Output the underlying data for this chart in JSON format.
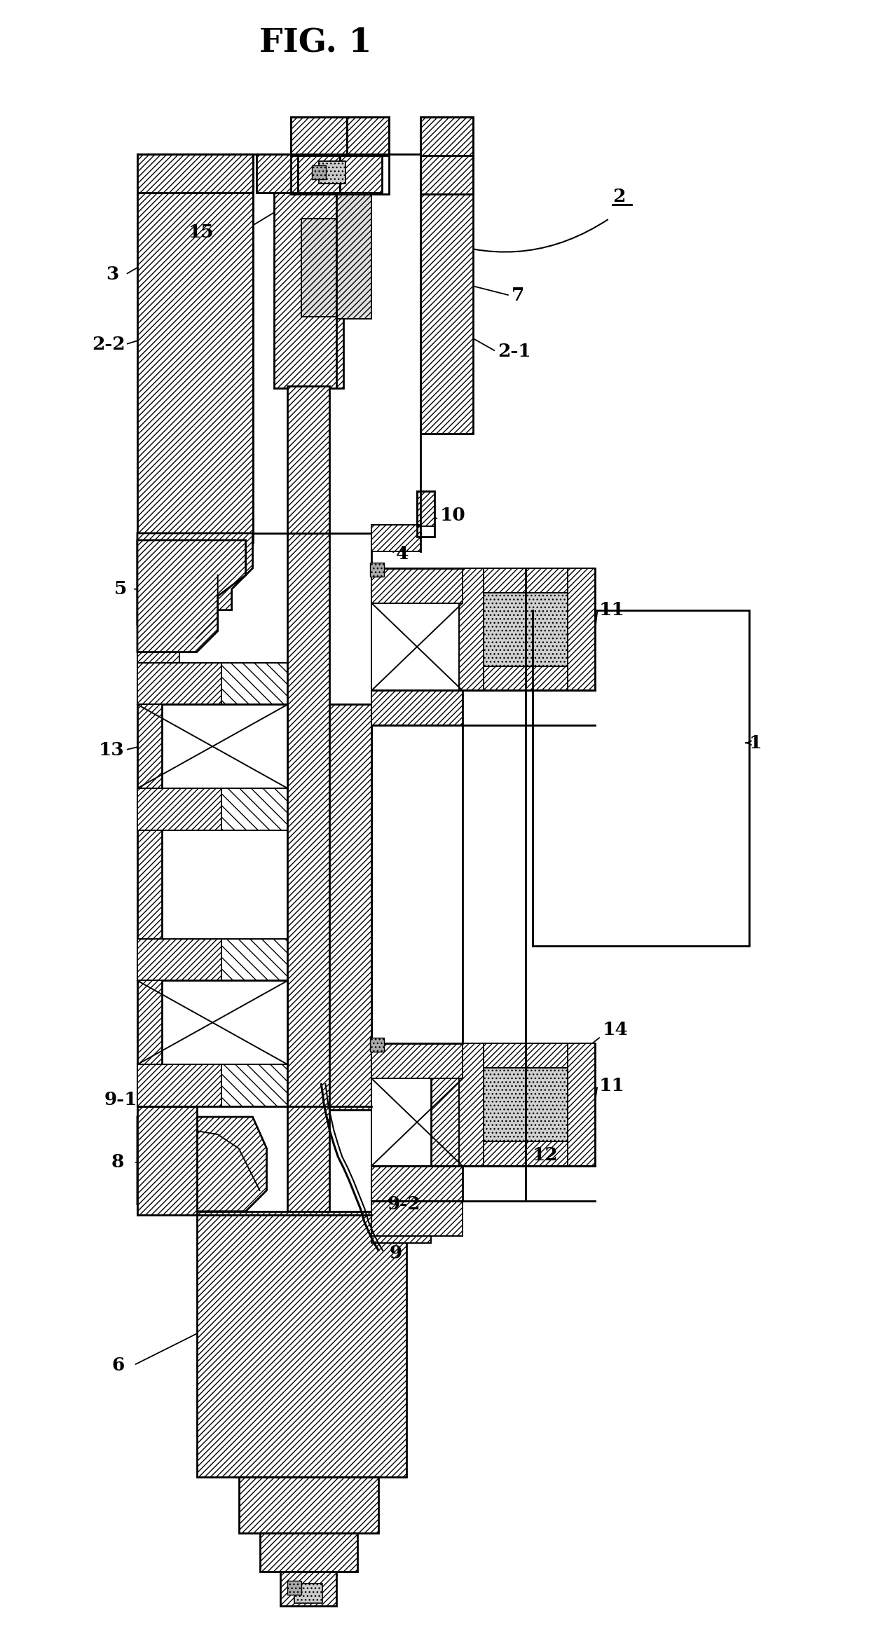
{
  "title": "FIG. 1",
  "title_fontsize": 34,
  "background_color": "#ffffff",
  "line_color": "#000000",
  "label_fontsize": 19,
  "figsize": [
    12.4,
    23.52
  ],
  "dpi": 100
}
